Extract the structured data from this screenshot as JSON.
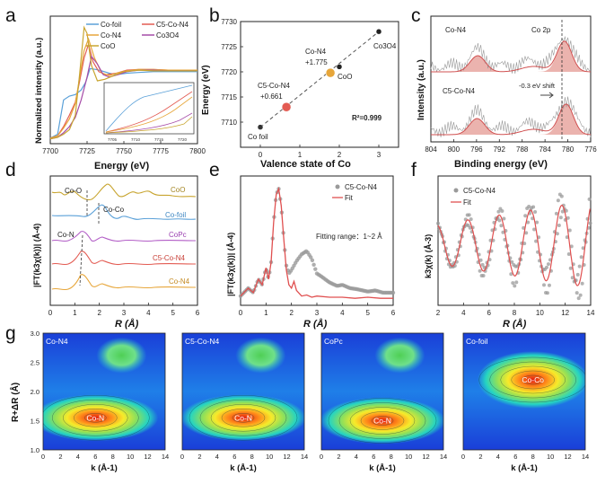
{
  "panel_letters": [
    "a",
    "b",
    "c",
    "d",
    "e",
    "f",
    "g"
  ],
  "colors": {
    "cofoil": "#5aa0d8",
    "c5": "#e35b52",
    "con4": "#e7a63a",
    "co3o4": "#a64ca8",
    "coo": "#c8a530",
    "copc": "#b25dc6",
    "dark": "#222222",
    "peak": "#e8a6a0",
    "exp": "#9a9a9a",
    "fit": "#e05050"
  },
  "chart_data": [
    {
      "id": "a",
      "type": "line",
      "xlabel": "Energy (eV)",
      "ylabel": "Normalized intensity (a.u.)",
      "xlim": [
        7700,
        7800
      ],
      "xticks": [
        7700,
        7725,
        7750,
        7775,
        7800
      ],
      "legend": [
        "Co-foil",
        "C5-Co-N4",
        "Co-N4",
        "Co3O4",
        "CoO"
      ],
      "series": [
        {
          "name": "Co-foil",
          "x": [
            7700,
            7705,
            7709,
            7713,
            7717,
            7721,
            7724,
            7727,
            7731,
            7735,
            7740,
            7745,
            7752,
            7760,
            7770,
            7780,
            7790,
            7800
          ],
          "y": [
            0.05,
            0.1,
            0.55,
            0.6,
            0.62,
            0.68,
            0.78,
            0.96,
            0.95,
            0.93,
            0.9,
            0.88,
            0.9,
            0.91,
            0.92,
            0.92,
            0.92,
            0.92
          ]
        },
        {
          "name": "C5-Co-N4",
          "x": [
            7700,
            7705,
            7709,
            7713,
            7717,
            7720,
            7723,
            7726,
            7729,
            7733,
            7738,
            7745,
            7752,
            7760,
            7770,
            7780,
            7790,
            7800
          ],
          "y": [
            0.05,
            0.08,
            0.2,
            0.35,
            0.52,
            0.8,
            1.1,
            1.28,
            1.05,
            0.92,
            0.88,
            0.9,
            0.94,
            0.95,
            0.95,
            0.94,
            0.94,
            0.94
          ]
        },
        {
          "name": "Co-N4",
          "x": [
            7700,
            7705,
            7709,
            7713,
            7717,
            7720,
            7723,
            7726,
            7730,
            7735,
            7740,
            7745,
            7752,
            7760,
            7770,
            7780,
            7790,
            7800
          ],
          "y": [
            0.05,
            0.08,
            0.18,
            0.3,
            0.5,
            0.85,
            1.2,
            1.35,
            1.1,
            0.9,
            0.87,
            0.9,
            0.93,
            0.95,
            0.95,
            0.94,
            0.94,
            0.94
          ]
        },
        {
          "name": "Co3O4",
          "x": [
            7700,
            7705,
            7709,
            7713,
            7717,
            7721,
            7725,
            7728,
            7732,
            7736,
            7740,
            7746,
            7752,
            7760,
            7770,
            7780,
            7790,
            7800
          ],
          "y": [
            0.04,
            0.06,
            0.12,
            0.2,
            0.32,
            0.55,
            0.85,
            1.12,
            1.02,
            0.88,
            0.85,
            0.88,
            0.92,
            0.94,
            0.94,
            0.93,
            0.93,
            0.93
          ]
        },
        {
          "name": "CoO",
          "x": [
            7700,
            7705,
            7709,
            7713,
            7717,
            7720,
            7723,
            7725,
            7728,
            7732,
            7737,
            7742,
            7750,
            7760,
            7770,
            7780,
            7790,
            7800
          ],
          "y": [
            0.04,
            0.06,
            0.1,
            0.16,
            0.35,
            0.9,
            1.5,
            1.42,
            1.0,
            0.8,
            0.82,
            0.86,
            0.92,
            0.94,
            0.93,
            0.93,
            0.93,
            0.93
          ]
        }
      ],
      "inset": {
        "xticks": [
          7705,
          7710,
          7715,
          7720
        ],
        "xlim": [
          7703,
          7721
        ]
      }
    },
    {
      "id": "b",
      "type": "scatter",
      "xlabel": "Valence state of Co",
      "ylabel": "Energy (eV)",
      "xlim": [
        -0.5,
        3.5
      ],
      "ylim": [
        7705,
        7730
      ],
      "xticks": [
        0,
        1,
        2,
        3
      ],
      "yticks": [
        7710,
        7715,
        7720,
        7725,
        7730
      ],
      "points": [
        {
          "label": "Co foil",
          "x": 0,
          "y": 7709
        },
        {
          "label": "C5-Co-N4",
          "x": 0.661,
          "y": 7713,
          "value": "+0.661"
        },
        {
          "label": "Co-N4",
          "x": 1.775,
          "y": 7719.8,
          "value": "+1.775"
        },
        {
          "label": "CoO",
          "x": 2,
          "y": 7721
        },
        {
          "label": "Co3O4",
          "x": 3,
          "y": 7728
        }
      ],
      "fit_line": {
        "x": [
          0,
          3
        ],
        "y": [
          7709,
          7728
        ]
      },
      "annotation": "R²=0.999"
    },
    {
      "id": "c",
      "type": "line",
      "xlabel": "Binding energy (eV)",
      "ylabel": "Intensity (a.u.)",
      "xlim": [
        804,
        776
      ],
      "xticks": [
        804,
        800,
        796,
        792,
        788,
        784,
        780,
        776
      ],
      "labels": [
        "Co-N4",
        "Co 2p",
        "C5-Co-N4",
        "-0.3 eV shift"
      ],
      "peaks": [
        {
          "sample": "Co-N4",
          "centers": [
            795.8,
            780.6
          ]
        },
        {
          "sample": "C5-Co-N4",
          "centers": [
            795.9,
            780.3
          ]
        }
      ]
    },
    {
      "id": "d",
      "type": "line",
      "xlabel": "R (Å)",
      "ylabel": "|FT(k3χ(k))| (Å-4)",
      "xlim": [
        0,
        6
      ],
      "xticks": [
        0,
        1,
        2,
        3,
        4,
        5,
        6
      ],
      "series_labels": [
        "CoO",
        "Co-foil",
        "CoPc",
        "C5-Co-N4",
        "Co-N4"
      ],
      "annotations": [
        "Co-O",
        "Co-Co",
        "Co-N"
      ]
    },
    {
      "id": "e",
      "type": "line",
      "xlabel": "R (Å)",
      "ylabel": "|FT(k3χ(k))| (Å-4)",
      "xlim": [
        0,
        6
      ],
      "xticks": [
        0,
        1,
        2,
        3,
        4,
        5,
        6
      ],
      "legend": [
        "C5-Co-N4",
        "Fit"
      ],
      "annotation": "Fitting range：1~2 Å",
      "series": [
        {
          "name": "Fit",
          "x": [
            0,
            0.3,
            0.5,
            0.7,
            0.85,
            1.0,
            1.1,
            1.2,
            1.3,
            1.4,
            1.5,
            1.6,
            1.7,
            1.8,
            1.9,
            2.0,
            2.1,
            2.2,
            2.4,
            2.6,
            2.8,
            3.0,
            3.5,
            4.0,
            4.5,
            5.0,
            5.5,
            6.0
          ],
          "y": [
            0.05,
            0.12,
            0.08,
            0.2,
            0.15,
            0.3,
            0.2,
            0.35,
            0.7,
            0.95,
            1.0,
            0.85,
            0.55,
            0.28,
            0.15,
            0.12,
            0.18,
            0.1,
            0.05,
            0.06,
            0.04,
            0.05,
            0.04,
            0.04,
            0.03,
            0.04,
            0.03,
            0.03
          ]
        },
        {
          "name": "C5-Co-N4",
          "x": [
            0,
            0.3,
            0.5,
            0.7,
            0.85,
            1.0,
            1.1,
            1.2,
            1.3,
            1.4,
            1.5,
            1.6,
            1.7,
            1.8,
            1.9,
            2.0,
            2.2,
            2.4,
            2.6,
            2.8,
            3.0,
            3.2,
            3.5,
            3.8,
            4.0,
            4.3,
            4.6,
            5.0,
            5.3,
            5.6,
            6.0
          ],
          "y": [
            0.05,
            0.12,
            0.08,
            0.2,
            0.15,
            0.3,
            0.2,
            0.35,
            0.7,
            0.95,
            1.0,
            0.85,
            0.55,
            0.32,
            0.25,
            0.28,
            0.36,
            0.42,
            0.45,
            0.38,
            0.25,
            0.22,
            0.17,
            0.14,
            0.15,
            0.12,
            0.11,
            0.09,
            0.1,
            0.08,
            0.08
          ]
        }
      ]
    },
    {
      "id": "f",
      "type": "line",
      "xlabel": "R (Å)",
      "ylabel": "k3χ(k) (Å-3)",
      "xlim": [
        2,
        14
      ],
      "xticks": [
        2,
        4,
        6,
        8,
        10,
        12,
        14
      ],
      "legend": [
        "C5-Co-N4",
        "Fit"
      ]
    },
    {
      "id": "g",
      "type": "heatmap",
      "xlabel": "k (Å-1)",
      "ylabel": "R+ΔR (Å)",
      "xlim": [
        0,
        14
      ],
      "ylim": [
        1.0,
        3.0
      ],
      "xticks": [
        0,
        2,
        4,
        6,
        8,
        10,
        12,
        14
      ],
      "yticks": [
        1.0,
        1.5,
        2.0,
        2.5,
        3.0
      ],
      "maps": [
        {
          "title": "Co-N4",
          "hotspot": "Co-N",
          "k": 6,
          "r": 1.55
        },
        {
          "title": "C5-Co-N4",
          "hotspot": "Co-N",
          "k": 7,
          "r": 1.55
        },
        {
          "title": "CoPc",
          "hotspot": "Co-N",
          "k": 7,
          "r": 1.5
        },
        {
          "title": "Co-foil",
          "hotspot": "Co-Co",
          "k": 8,
          "r": 2.2
        }
      ]
    }
  ]
}
